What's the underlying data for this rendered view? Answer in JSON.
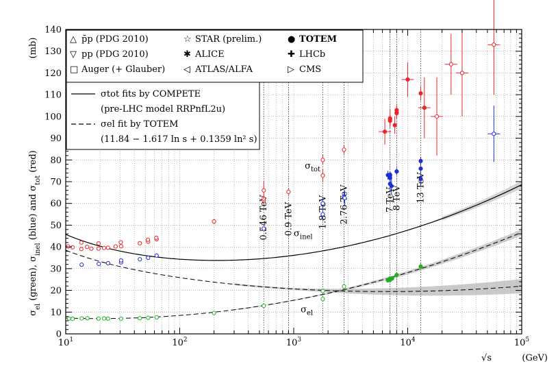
{
  "chart_data": {
    "type": "scatter",
    "x_scale": "log",
    "xlim": [
      10,
      100000
    ],
    "ylim": [
      0,
      140
    ],
    "x_ticks": [
      10,
      100,
      1000,
      10000,
      100000
    ],
    "x_tick_labels": [
      {
        "base": "10",
        "exp": "1"
      },
      {
        "base": "10",
        "exp": "2"
      },
      {
        "base": "10",
        "exp": "3"
      },
      {
        "base": "10",
        "exp": "4"
      },
      {
        "base": "10",
        "exp": "5"
      }
    ],
    "y_ticks": [
      0,
      10,
      20,
      30,
      40,
      50,
      60,
      70,
      80,
      90,
      100,
      110,
      120,
      130,
      140
    ],
    "xlabel": {
      "symbol": "√s",
      "unit": "(GeV)"
    },
    "ylabel": {
      "unit": "(mb)"
    },
    "grid": true,
    "colors": {
      "tot": "#e8262b",
      "inel": "#1f2fd6",
      "el": "#22b022",
      "fit": "#000000",
      "band": "#b8b8b8"
    },
    "energy_lines": [
      {
        "x": 546,
        "label": "0.546 TeV"
      },
      {
        "x": 900,
        "label": "0.9 TeV"
      },
      {
        "x": 1800,
        "label": "1.8 TeV"
      },
      {
        "x": 2760,
        "label": "2.76 TeV"
      },
      {
        "x": 7000,
        "label": "7 TeV"
      },
      {
        "x": 8000,
        "label": "8 TeV"
      },
      {
        "x": 13000,
        "label": "13 TeV"
      }
    ],
    "legend_markers": [
      {
        "symbol": "△",
        "text": "p̄p (PDG 2010)"
      },
      {
        "symbol": "▽",
        "text": "pp (PDG 2010)"
      },
      {
        "symbol": "□",
        "text": "Auger (+ Glauber)"
      },
      {
        "symbol": "☆",
        "text": "STAR (prelim.)"
      },
      {
        "symbol": "✱",
        "text": "ALICE"
      },
      {
        "symbol": "◁",
        "text": "ATLAS/ALFA"
      },
      {
        "symbol": "●",
        "text": "TOTEM"
      },
      {
        "symbol": "✚",
        "text": "LHCb"
      },
      {
        "symbol": "▷",
        "text": "CMS"
      }
    ],
    "legend_lines": [
      {
        "style": "solid",
        "line1": "σtot fits by COMPETE",
        "line2": "(pre-LHC model RRPnfL2u)"
      },
      {
        "style": "dashed",
        "line1": "σel fit by TOTEM",
        "line2": "(11.84 − 1.617 ln s + 0.1359 ln² s)"
      }
    ],
    "series": [
      {
        "name": "σtot",
        "color_key": "tot",
        "points": [
          {
            "x": 10.5,
            "y": 40.2,
            "err": 0.6
          },
          {
            "x": 11.5,
            "y": 39.8,
            "err": 0.5
          },
          {
            "x": 13.7,
            "y": 39.0,
            "err": 0.4
          },
          {
            "x": 15.4,
            "y": 40.0,
            "err": 0.5
          },
          {
            "x": 16.8,
            "y": 39.2,
            "err": 0.5
          },
          {
            "x": 19.4,
            "y": 39.2,
            "err": 0.4
          },
          {
            "x": 21.7,
            "y": 39.5,
            "err": 0.5
          },
          {
            "x": 23.5,
            "y": 39.6,
            "err": 0.4
          },
          {
            "x": 27.4,
            "y": 40.2,
            "err": 0.5
          },
          {
            "x": 30.6,
            "y": 40.3,
            "err": 0.4
          },
          {
            "x": 44.7,
            "y": 41.7,
            "err": 0.5
          },
          {
            "x": 52.8,
            "y": 42.4,
            "err": 0.5
          },
          {
            "x": 62.7,
            "y": 43.5,
            "err": 0.6
          },
          {
            "x": 13.7,
            "y": 42.0,
            "err": 0.6
          },
          {
            "x": 19.4,
            "y": 41.6,
            "err": 0.5
          },
          {
            "x": 30.4,
            "y": 42.1,
            "err": 0.6
          },
          {
            "x": 52.6,
            "y": 43.3,
            "err": 0.6
          },
          {
            "x": 62.3,
            "y": 44.2,
            "err": 0.8
          },
          {
            "x": 200,
            "y": 51.7,
            "err": 1.2
          },
          {
            "x": 546,
            "y": 61.3,
            "err": 1.0
          },
          {
            "x": 546,
            "y": 62.2,
            "err": 1.5
          },
          {
            "x": 546,
            "y": 66.0,
            "err": 4.0
          },
          {
            "x": 900,
            "y": 65.3,
            "err": 1.3
          },
          {
            "x": 1800,
            "y": 72.8,
            "err": 3.1
          },
          {
            "x": 1800,
            "y": 80.0,
            "err": 2.2
          },
          {
            "x": 2760,
            "y": 84.7,
            "err": 2.0
          },
          {
            "x": 6300,
            "y": 93.0,
            "err": 6.0
          },
          {
            "x": 7000,
            "y": 98.0,
            "err": 2.5
          },
          {
            "x": 7000,
            "y": 98.6,
            "err": 2.2
          },
          {
            "x": 7000,
            "y": 99.1,
            "err": 4.3
          },
          {
            "x": 7700,
            "y": 96.0,
            "err": 4.0
          },
          {
            "x": 8000,
            "y": 101.7,
            "err": 2.9
          },
          {
            "x": 8000,
            "y": 102.9,
            "err": 2.3
          },
          {
            "x": 8000,
            "y": 101.5,
            "err": 2.1
          },
          {
            "x": 10000,
            "y": 117.0,
            "err": 8.0
          },
          {
            "x": 13000,
            "y": 110.6,
            "err": 3.4
          },
          {
            "x": 14000,
            "y": 104.0,
            "err": 14.0
          },
          {
            "x": 18000,
            "y": 100.0,
            "err": 18.0
          },
          {
            "x": 24000,
            "y": 124.0,
            "err": 14.0
          },
          {
            "x": 30000,
            "y": 120.0,
            "err": 20.0
          },
          {
            "x": 57000,
            "y": 133.0,
            "err": 23.0
          }
        ]
      },
      {
        "name": "σinel",
        "color_key": "inel",
        "points": [
          {
            "x": 13.8,
            "y": 31.8,
            "err": 0.5
          },
          {
            "x": 19.5,
            "y": 32.2,
            "err": 0.5
          },
          {
            "x": 23.5,
            "y": 32.5,
            "err": 0.5
          },
          {
            "x": 30.6,
            "y": 32.9,
            "err": 0.5
          },
          {
            "x": 30.6,
            "y": 33.8,
            "err": 0.6
          },
          {
            "x": 44.7,
            "y": 34.3,
            "err": 0.6
          },
          {
            "x": 52.8,
            "y": 35.0,
            "err": 0.6
          },
          {
            "x": 62.7,
            "y": 36.0,
            "err": 0.7
          },
          {
            "x": 546,
            "y": 48.4,
            "err": 0.5
          },
          {
            "x": 1800,
            "y": 55.0,
            "err": 3.0
          },
          {
            "x": 1800,
            "y": 60.0,
            "err": 2.5
          },
          {
            "x": 2760,
            "y": 62.8,
            "err": 2.4
          },
          {
            "x": 2800,
            "y": 62.5,
            "err": 3.5
          },
          {
            "x": 6700,
            "y": 73.0,
            "err": 2.0
          },
          {
            "x": 7000,
            "y": 73.2,
            "err": 1.3
          },
          {
            "x": 7000,
            "y": 72.9,
            "err": 1.5
          },
          {
            "x": 7000,
            "y": 71.7,
            "err": 1.9
          },
          {
            "x": 7000,
            "y": 69.0,
            "err": 2.5
          },
          {
            "x": 7200,
            "y": 68.0,
            "err": 4.0
          },
          {
            "x": 8000,
            "y": 74.7,
            "err": 1.7
          },
          {
            "x": 13000,
            "y": 79.5,
            "err": 1.8
          },
          {
            "x": 13000,
            "y": 76.0,
            "err": 2.5
          },
          {
            "x": 13000,
            "y": 71.3,
            "err": 3.5
          },
          {
            "x": 57000,
            "y": 92.0,
            "err": 13.0
          }
        ]
      },
      {
        "name": "σel",
        "color_key": "el",
        "points": [
          {
            "x": 10.7,
            "y": 7.0,
            "err": 0.3
          },
          {
            "x": 11.5,
            "y": 6.9,
            "err": 0.3
          },
          {
            "x": 13.8,
            "y": 7.1,
            "err": 0.3
          },
          {
            "x": 15.5,
            "y": 7.2,
            "err": 0.3
          },
          {
            "x": 19.4,
            "y": 7.0,
            "err": 0.3
          },
          {
            "x": 21.7,
            "y": 7.1,
            "err": 0.3
          },
          {
            "x": 23.5,
            "y": 7.0,
            "err": 0.3
          },
          {
            "x": 30.6,
            "y": 7.0,
            "err": 0.3
          },
          {
            "x": 44.7,
            "y": 7.2,
            "err": 0.3
          },
          {
            "x": 52.8,
            "y": 7.4,
            "err": 0.3
          },
          {
            "x": 62.7,
            "y": 7.6,
            "err": 0.4
          },
          {
            "x": 200,
            "y": 9.6,
            "err": 0.4
          },
          {
            "x": 546,
            "y": 12.9,
            "err": 0.3
          },
          {
            "x": 1800,
            "y": 16.0,
            "err": 1.0
          },
          {
            "x": 1800,
            "y": 19.7,
            "err": 0.9
          },
          {
            "x": 2760,
            "y": 21.8,
            "err": 1.4
          },
          {
            "x": 6700,
            "y": 24.6,
            "err": 0.5
          },
          {
            "x": 7000,
            "y": 25.1,
            "err": 1.1
          },
          {
            "x": 7000,
            "y": 25.4,
            "err": 1.1
          },
          {
            "x": 7000,
            "y": 24.8,
            "err": 1.2
          },
          {
            "x": 7300,
            "y": 25.5,
            "err": 1.0
          },
          {
            "x": 8000,
            "y": 27.1,
            "err": 1.4
          },
          {
            "x": 13000,
            "y": 31.0,
            "err": 1.7
          }
        ]
      }
    ],
    "series_labels": [
      {
        "key": "tot",
        "base": "σ",
        "sub": "tot",
        "x": 1250,
        "y": 76
      },
      {
        "key": "inel",
        "base": "σ",
        "sub": "inel",
        "x": 1000,
        "y": 45
      },
      {
        "key": "el",
        "base": "σ",
        "sub": "el",
        "x": 1150,
        "y": 10
      }
    ]
  }
}
